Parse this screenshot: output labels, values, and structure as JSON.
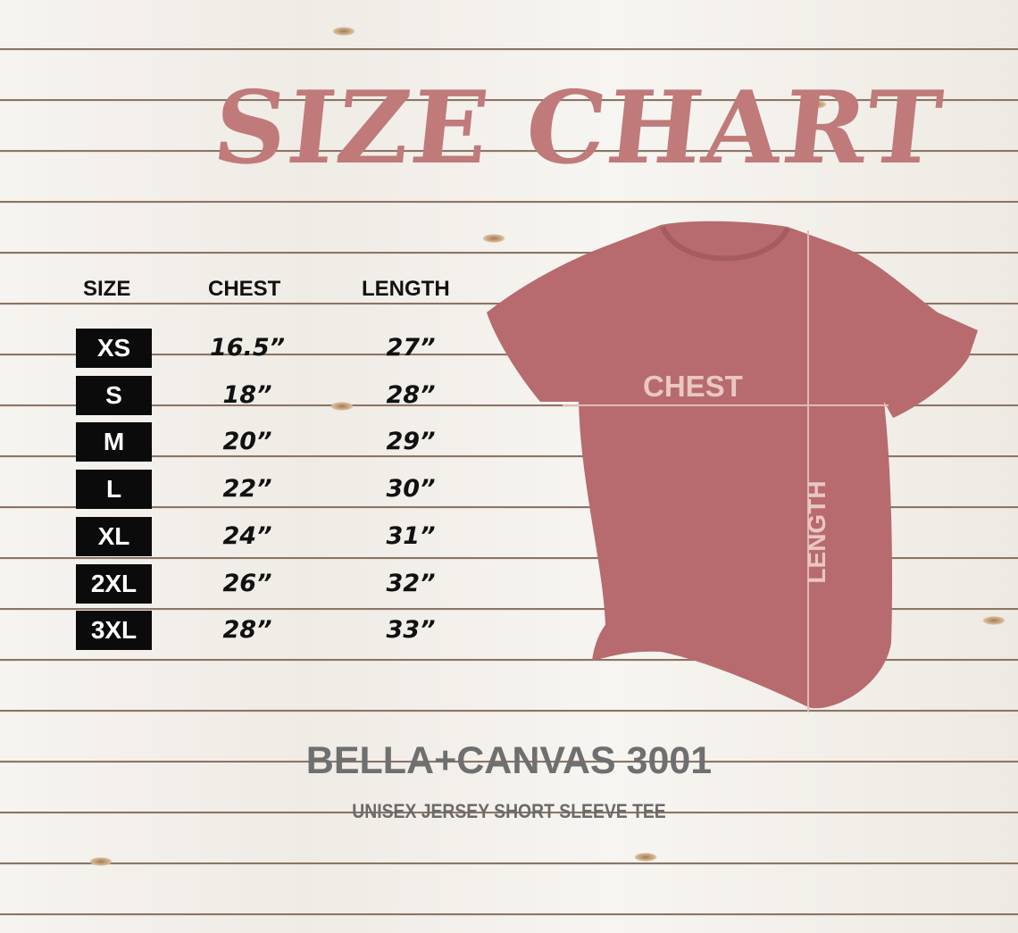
{
  "title": "SIZE CHART",
  "table": {
    "headers": [
      "SIZE",
      "CHEST",
      "LENGTH"
    ],
    "rows": [
      {
        "size": "XS",
        "chest": "16.5”",
        "length": "27”"
      },
      {
        "size": "S",
        "chest": "18”",
        "length": "28”"
      },
      {
        "size": "M",
        "chest": "20”",
        "length": "29”"
      },
      {
        "size": "L",
        "chest": "22”",
        "length": "30”"
      },
      {
        "size": "XL",
        "chest": "24”",
        "length": "31”"
      },
      {
        "size": "2XL",
        "chest": "26”",
        "length": "32”"
      },
      {
        "size": "3XL",
        "chest": "28”",
        "length": "33”"
      }
    ]
  },
  "shirt": {
    "chest_label": "CHEST",
    "length_label": "LENGTH",
    "color": "#b76b6e"
  },
  "brand": "BELLA+CANVAS 3001",
  "subtitle": "UNISEX JERSEY SHORT SLEEVE TEE",
  "colors": {
    "title": "#c07a7a",
    "brand": "#6f6f6f"
  }
}
